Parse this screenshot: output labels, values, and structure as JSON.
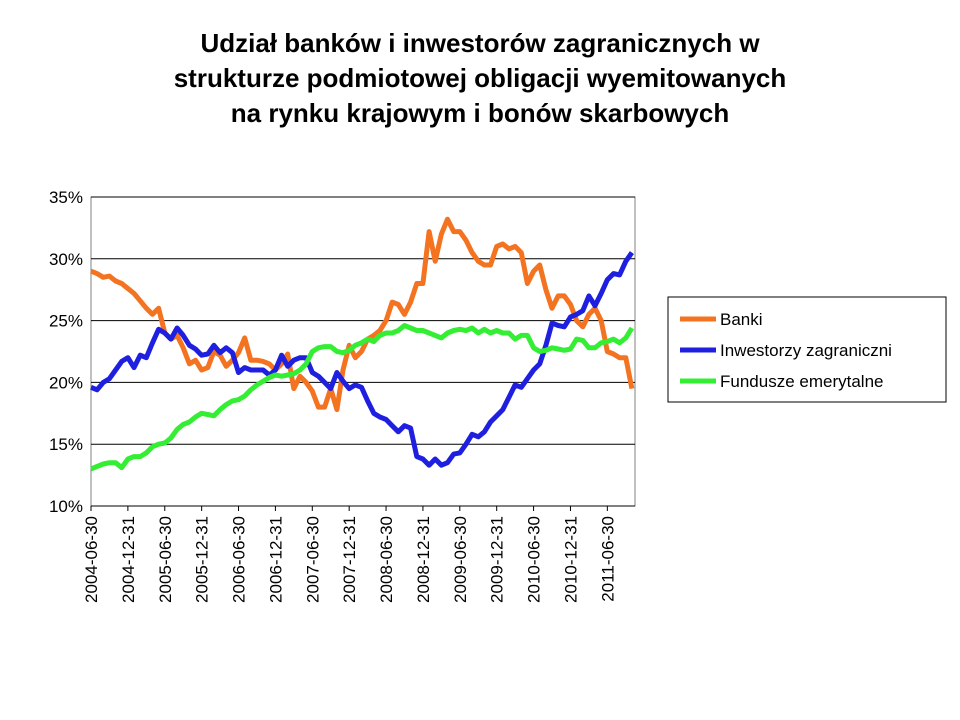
{
  "chart_data": {
    "type": "line",
    "title": [
      "Udział banków i inwestorów zagranicznych w",
      "strukturze podmiotowej obligacji wyemitowanych",
      "na rynku krajowym i bonów skarbowych"
    ],
    "categories": [
      "2004-06-30",
      null,
      null,
      null,
      null,
      null,
      "2004-12-31",
      null,
      null,
      null,
      null,
      null,
      "2005-06-30",
      null,
      null,
      null,
      null,
      null,
      "2005-12-31",
      null,
      null,
      null,
      null,
      null,
      "2006-06-30",
      null,
      null,
      null,
      null,
      null,
      "2006-12-31",
      null,
      null,
      null,
      null,
      null,
      "2007-06-30",
      null,
      null,
      null,
      null,
      null,
      "2007-12-31",
      null,
      null,
      null,
      null,
      null,
      "2008-06-30",
      null,
      null,
      null,
      null,
      null,
      "2008-12-31",
      null,
      null,
      null,
      null,
      null,
      "2009-06-30",
      null,
      null,
      null,
      null,
      null,
      "2009-12-31",
      null,
      null,
      null,
      null,
      null,
      "2010-06-30",
      null,
      null,
      null,
      null,
      null,
      "2010-12-31",
      null,
      null,
      null,
      null,
      null,
      "2011-06-30",
      null,
      null,
      null,
      null
    ],
    "series": [
      {
        "name": "Banki",
        "color": "#f47321",
        "values": [
          29,
          28.8,
          28.5,
          28.6,
          28.2,
          28,
          27.6,
          27.2,
          26.6,
          26,
          25.5,
          26,
          24,
          23.5,
          23.8,
          22.8,
          21.5,
          21.8,
          21,
          21.2,
          22.5,
          22.2,
          21.3,
          21.8,
          22.4,
          23.6,
          21.8,
          21.8,
          21.7,
          21.5,
          21,
          21.5,
          22.3,
          19.5,
          20.5,
          20,
          19.3,
          18,
          18,
          19.5,
          17.8,
          21,
          23,
          22,
          22.5,
          23.5,
          23.8,
          24.2,
          25,
          26.5,
          26.3,
          25.5,
          26.5,
          28,
          28,
          32.2,
          29.8,
          32,
          33.2,
          32.2,
          32.2,
          31.5,
          30.5,
          29.8,
          29.5,
          29.5,
          31,
          31.2,
          30.8,
          31,
          30.5,
          28,
          29,
          29.5,
          27.5,
          26,
          27,
          27,
          26.3,
          25,
          24.5,
          25.5,
          26,
          25,
          22.5,
          22.3,
          22,
          22,
          19.5
        ]
      },
      {
        "name": "Inwestorzy zagraniczni",
        "color": "#1f1fe0",
        "values": [
          19.6,
          19.4,
          20,
          20.3,
          21,
          21.7,
          22,
          21.2,
          22.2,
          22,
          23.2,
          24.3,
          24,
          23.5,
          24.4,
          23.8,
          23,
          22.7,
          22.2,
          22.3,
          23,
          22.4,
          22.8,
          22.4,
          20.8,
          21.2,
          21,
          21,
          21,
          20.6,
          21,
          22.2,
          21.3,
          21.8,
          22,
          22,
          20.8,
          20.5,
          20,
          19.5,
          20.8,
          20.1,
          19.5,
          19.8,
          19.6,
          18.5,
          17.5,
          17.2,
          17,
          16.5,
          16,
          16.5,
          16.3,
          14,
          13.8,
          13.3,
          13.8,
          13.3,
          13.5,
          14.2,
          14.3,
          15,
          15.8,
          15.6,
          16,
          16.8,
          17.3,
          17.8,
          18.8,
          19.8,
          19.6,
          20.3,
          21,
          21.5,
          23,
          24.8,
          24.6,
          24.5,
          25.3,
          25.5,
          25.8,
          27,
          26.2,
          27.2,
          28.3,
          28.8,
          28.7,
          29.8,
          30.5
        ]
      },
      {
        "name": "Fundusze emerytalne",
        "color": "#33ee33",
        "values": [
          13,
          13.2,
          13.4,
          13.5,
          13.5,
          13.1,
          13.8,
          14,
          14,
          14.3,
          14.8,
          15,
          15.1,
          15.5,
          16.2,
          16.6,
          16.8,
          17.2,
          17.5,
          17.4,
          17.3,
          17.8,
          18.2,
          18.5,
          18.6,
          18.9,
          19.4,
          19.8,
          20.1,
          20.4,
          20.6,
          20.5,
          20.6,
          20.7,
          21,
          21.5,
          22.5,
          22.8,
          22.9,
          22.9,
          22.5,
          22.4,
          22.6,
          23,
          23.2,
          23.5,
          23.3,
          23.8,
          24,
          24,
          24.2,
          24.6,
          24.4,
          24.2,
          24.2,
          24,
          23.8,
          23.6,
          24,
          24.2,
          24.3,
          24.2,
          24.4,
          24,
          24.3,
          24,
          24.2,
          24,
          24,
          23.5,
          23.8,
          23.8,
          22.8,
          22.5,
          22.6,
          22.8,
          22.7,
          22.6,
          22.7,
          23.5,
          23.4,
          22.8,
          22.8,
          23.2,
          23.3,
          23.5,
          23.2,
          23.6,
          24.4
        ]
      }
    ],
    "ylim": [
      10,
      35
    ],
    "yticks": [
      {
        "value": 10,
        "label": "10%"
      },
      {
        "value": 15,
        "label": "15%"
      },
      {
        "value": 20,
        "label": "20%"
      },
      {
        "value": 25,
        "label": "25%"
      },
      {
        "value": 30,
        "label": "30%"
      },
      {
        "value": 35,
        "label": "35%"
      }
    ],
    "grid": true,
    "legend": "right"
  }
}
